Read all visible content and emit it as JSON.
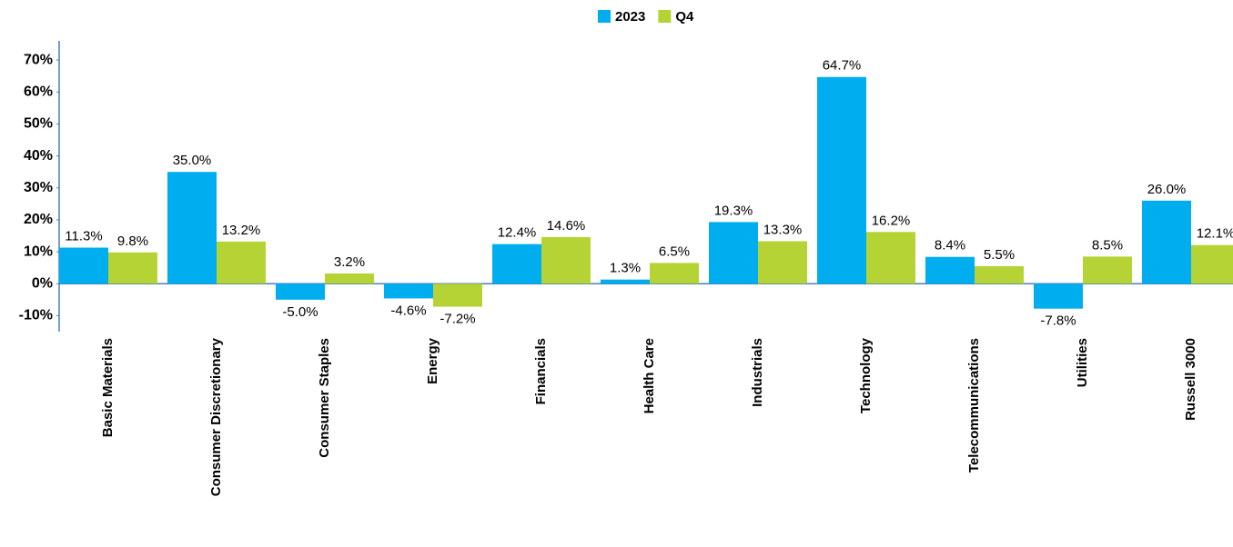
{
  "chart_data": {
    "type": "bar",
    "categories": [
      "Basic Materials",
      "Consumer Discretionary",
      "Consumer Staples",
      "Energy",
      "Financials",
      "Health Care",
      "Industrials",
      "Technology",
      "Telecommunications",
      "Utilities",
      "Russell 3000"
    ],
    "series": [
      {
        "name": "2023",
        "color": "#00aeef",
        "values": [
          11.3,
          35.0,
          -5.0,
          -4.6,
          12.4,
          1.3,
          19.3,
          64.7,
          8.4,
          -7.8,
          26.0
        ],
        "value_labels": [
          "11.3%",
          "35.0%",
          "-5.0%",
          "-4.6%",
          "12.4%",
          "1.3%",
          "19.3%",
          "64.7%",
          "8.4%",
          "-7.8%",
          "26.0%"
        ]
      },
      {
        "name": "Q4",
        "color": "#b5d334",
        "values": [
          9.8,
          13.2,
          3.2,
          -7.2,
          14.6,
          6.5,
          13.3,
          16.2,
          5.5,
          8.5,
          12.1
        ],
        "value_labels": [
          "9.8%",
          "13.2%",
          "3.2%",
          "-7.2%",
          "14.6%",
          "6.5%",
          "13.3%",
          "16.2%",
          "5.5%",
          "8.5%",
          "12.1%"
        ]
      }
    ],
    "ylim": [
      -15,
      76
    ],
    "yticks": [
      {
        "value": -10,
        "label": "-10%"
      },
      {
        "value": 0,
        "label": "0%"
      },
      {
        "value": 10,
        "label": "10%"
      },
      {
        "value": 20,
        "label": "20%"
      },
      {
        "value": 30,
        "label": "30%"
      },
      {
        "value": 40,
        "label": "40%"
      },
      {
        "value": 50,
        "label": "50%"
      },
      {
        "value": 60,
        "label": "60%"
      },
      {
        "value": 70,
        "label": "70%"
      }
    ],
    "legend": "top",
    "grid": false
  }
}
